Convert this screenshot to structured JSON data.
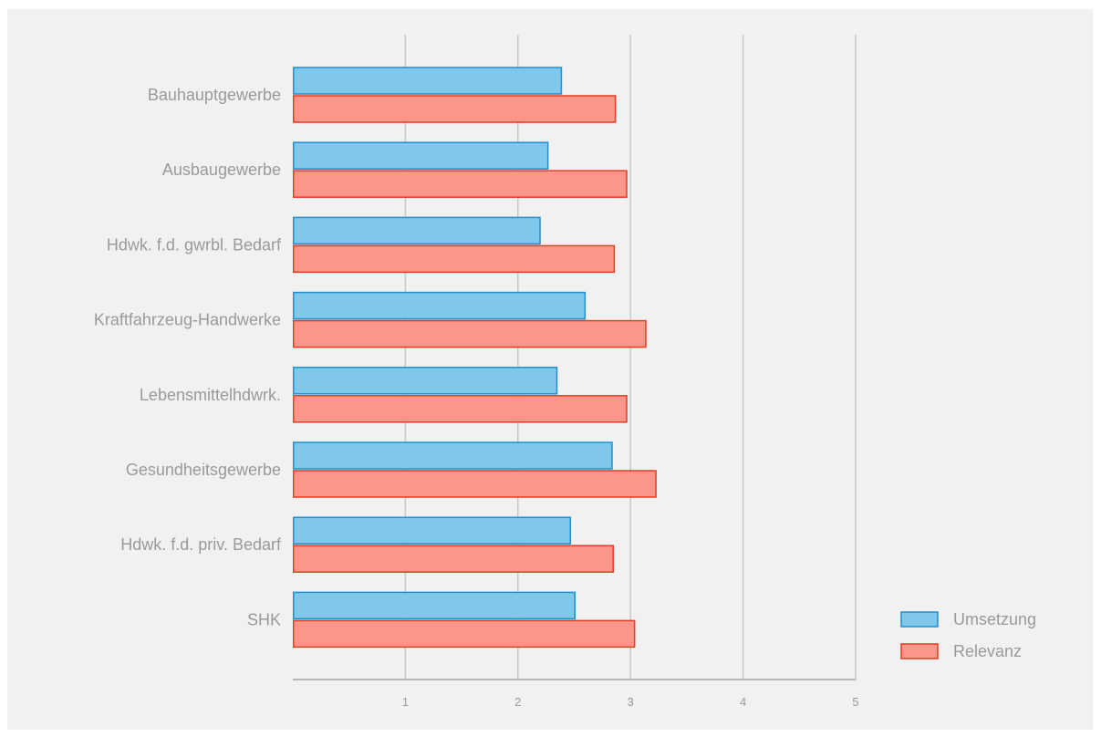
{
  "colors": {
    "panel_bg": "#f1f1f1",
    "grid": "#c8c8c8",
    "axis": "#a6a6a6",
    "text": "#9a9a9a",
    "umsetzung_fill": "#80c8ea",
    "umsetzung_stroke": "#1f8fcf",
    "relevanz_fill": "#fa978a",
    "relevanz_stroke": "#e63b21"
  },
  "chart_data": {
    "type": "bar",
    "orientation": "horizontal",
    "categories": [
      "Bauhauptgewerbe",
      "Ausbaugewerbe",
      "Hdwk. f.d. gwrbl. Bedarf",
      "Kraftfahrzeug-Handwerke",
      "Lebensmittelhdwrk.",
      "Gesundheitsgewerbe",
      "Hdwk. f.d. priv. Bedarf",
      "SHK"
    ],
    "series": [
      {
        "name": "Umsetzung",
        "values": [
          2.38,
          2.26,
          2.19,
          2.59,
          2.34,
          2.83,
          2.46,
          2.5
        ]
      },
      {
        "name": "Relevanz",
        "values": [
          2.86,
          2.96,
          2.85,
          3.13,
          2.96,
          3.22,
          2.84,
          3.03
        ]
      }
    ],
    "xlim": [
      0,
      5
    ],
    "xticks": [
      "1",
      "2",
      "3",
      "4",
      "5"
    ],
    "title": "",
    "xlabel": "",
    "ylabel": "",
    "grid": true,
    "legend_position": "bottom-right"
  }
}
